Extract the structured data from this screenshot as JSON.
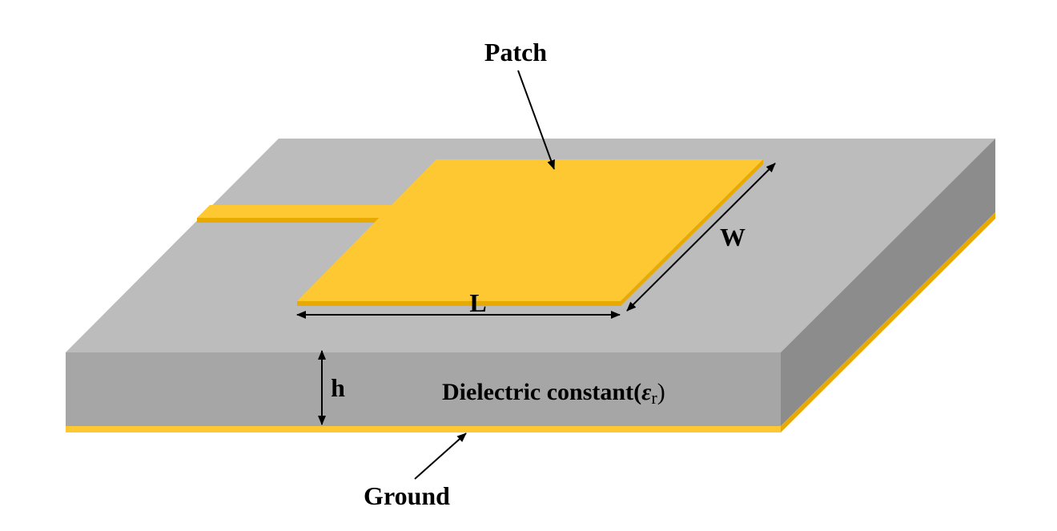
{
  "labels": {
    "patch": "Patch",
    "width": "W",
    "length": "L",
    "height": "h",
    "dielectric_prefix": "Dielectric constant(",
    "epsilon": "ε",
    "epsilon_sub": "r",
    "dielectric_suffix": ")",
    "ground": "Ground"
  },
  "colors": {
    "substrate_top": "#bcbcbc",
    "substrate_front": "#a6a6a6",
    "substrate_side": "#8c8c8c",
    "metal": "#fdc831",
    "metal_edge": "#e8a900",
    "arrow": "#000000",
    "background": "#ffffff"
  }
}
